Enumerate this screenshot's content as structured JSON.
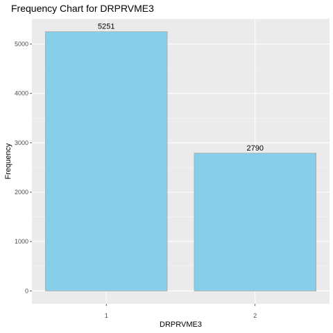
{
  "chart_data": {
    "type": "bar",
    "title": "Frequency Chart for DRPRVME3",
    "xlabel": "DRPRVME3",
    "ylabel": "Frequency",
    "categories": [
      "1",
      "2"
    ],
    "values": [
      5251,
      2790
    ],
    "data_labels": [
      "5251",
      "2790"
    ],
    "y_ticks": [
      0,
      1000,
      2000,
      3000,
      4000,
      5000
    ],
    "y_tick_labels": [
      "0",
      "1000",
      "2000",
      "3000",
      "4000",
      "5000"
    ],
    "ylim": [
      -262.55,
      5513.55
    ],
    "grid": true,
    "legend": "none",
    "colors": {
      "bar_fill": "#87ceeb",
      "bar_stroke": "#a6a6a6",
      "panel_bg": "#ebebeb",
      "grid_major": "#ffffff",
      "grid_minor": "#f5f5f5",
      "tick": "#333333"
    }
  }
}
